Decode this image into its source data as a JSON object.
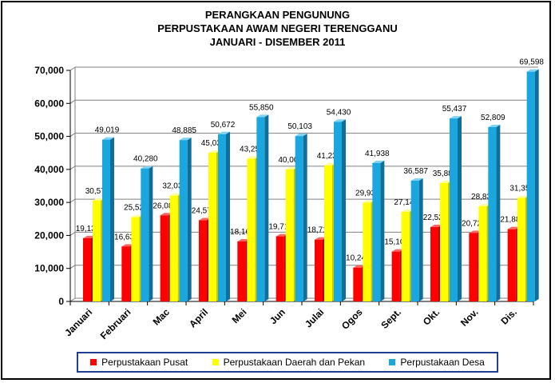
{
  "titles": {
    "line1": "PERANGKAAN PENGUNUNG",
    "line2": "PERPUSTAKAAN AWAM NEGERI TERENGGANU",
    "line3": "JANUARI - DISEMBER 2011"
  },
  "colors": {
    "pusat": "#ff0000",
    "daerah": "#ffff00",
    "desa": "#1aa7df"
  },
  "chart_data": {
    "type": "bar",
    "categories": [
      "Januari",
      "Februari",
      "Mac",
      "April",
      "Mei",
      "Jun",
      "Julai",
      "Ogos",
      "Sept.",
      "Okt.",
      "Nov.",
      "Dis."
    ],
    "series": [
      {
        "name": "Perpustakaan Pusat",
        "values": [
          19139,
          16636,
          26087,
          24570,
          18161,
          19715,
          18717,
          10242,
          15100,
          22525,
          20723,
          21884
        ],
        "labels": [
          "19,139",
          "16,636",
          "26,087",
          "24,570",
          "18,161",
          "19,715",
          "18,717",
          "10,242",
          "15,100",
          "22,525",
          "20,723",
          "21,884"
        ]
      },
      {
        "name": "Perpustakaan Daerah dan Pekan",
        "values": [
          30575,
          25522,
          32033,
          45039,
          43252,
          40009,
          41230,
          29938,
          27142,
          35886,
          28838,
          31350
        ],
        "labels": [
          "30,575",
          "25,522",
          "32,033",
          "45,039",
          "43,252",
          "40,009",
          "41,230",
          "29,938",
          "27,142",
          "35,886",
          "28,838",
          "31,350"
        ]
      },
      {
        "name": "Perpustakaan Desa",
        "values": [
          49019,
          40280,
          48885,
          50672,
          55850,
          50103,
          54430,
          41938,
          36587,
          55437,
          52809,
          69598
        ],
        "labels": [
          "49,019",
          "40,280",
          "48,885",
          "50,672",
          "55,850",
          "50,103",
          "54,430",
          "41,938",
          "36,587",
          "55,437",
          "52,809",
          "69,598"
        ]
      }
    ],
    "ylim": [
      0,
      70000
    ],
    "yticks": [
      "0",
      "10,000",
      "20,000",
      "30,000",
      "40,000",
      "50,000",
      "60,000",
      "70,000"
    ],
    "ytick_values": [
      0,
      10000,
      20000,
      30000,
      40000,
      50000,
      60000,
      70000
    ],
    "grid": true,
    "legend_position": "bottom"
  }
}
